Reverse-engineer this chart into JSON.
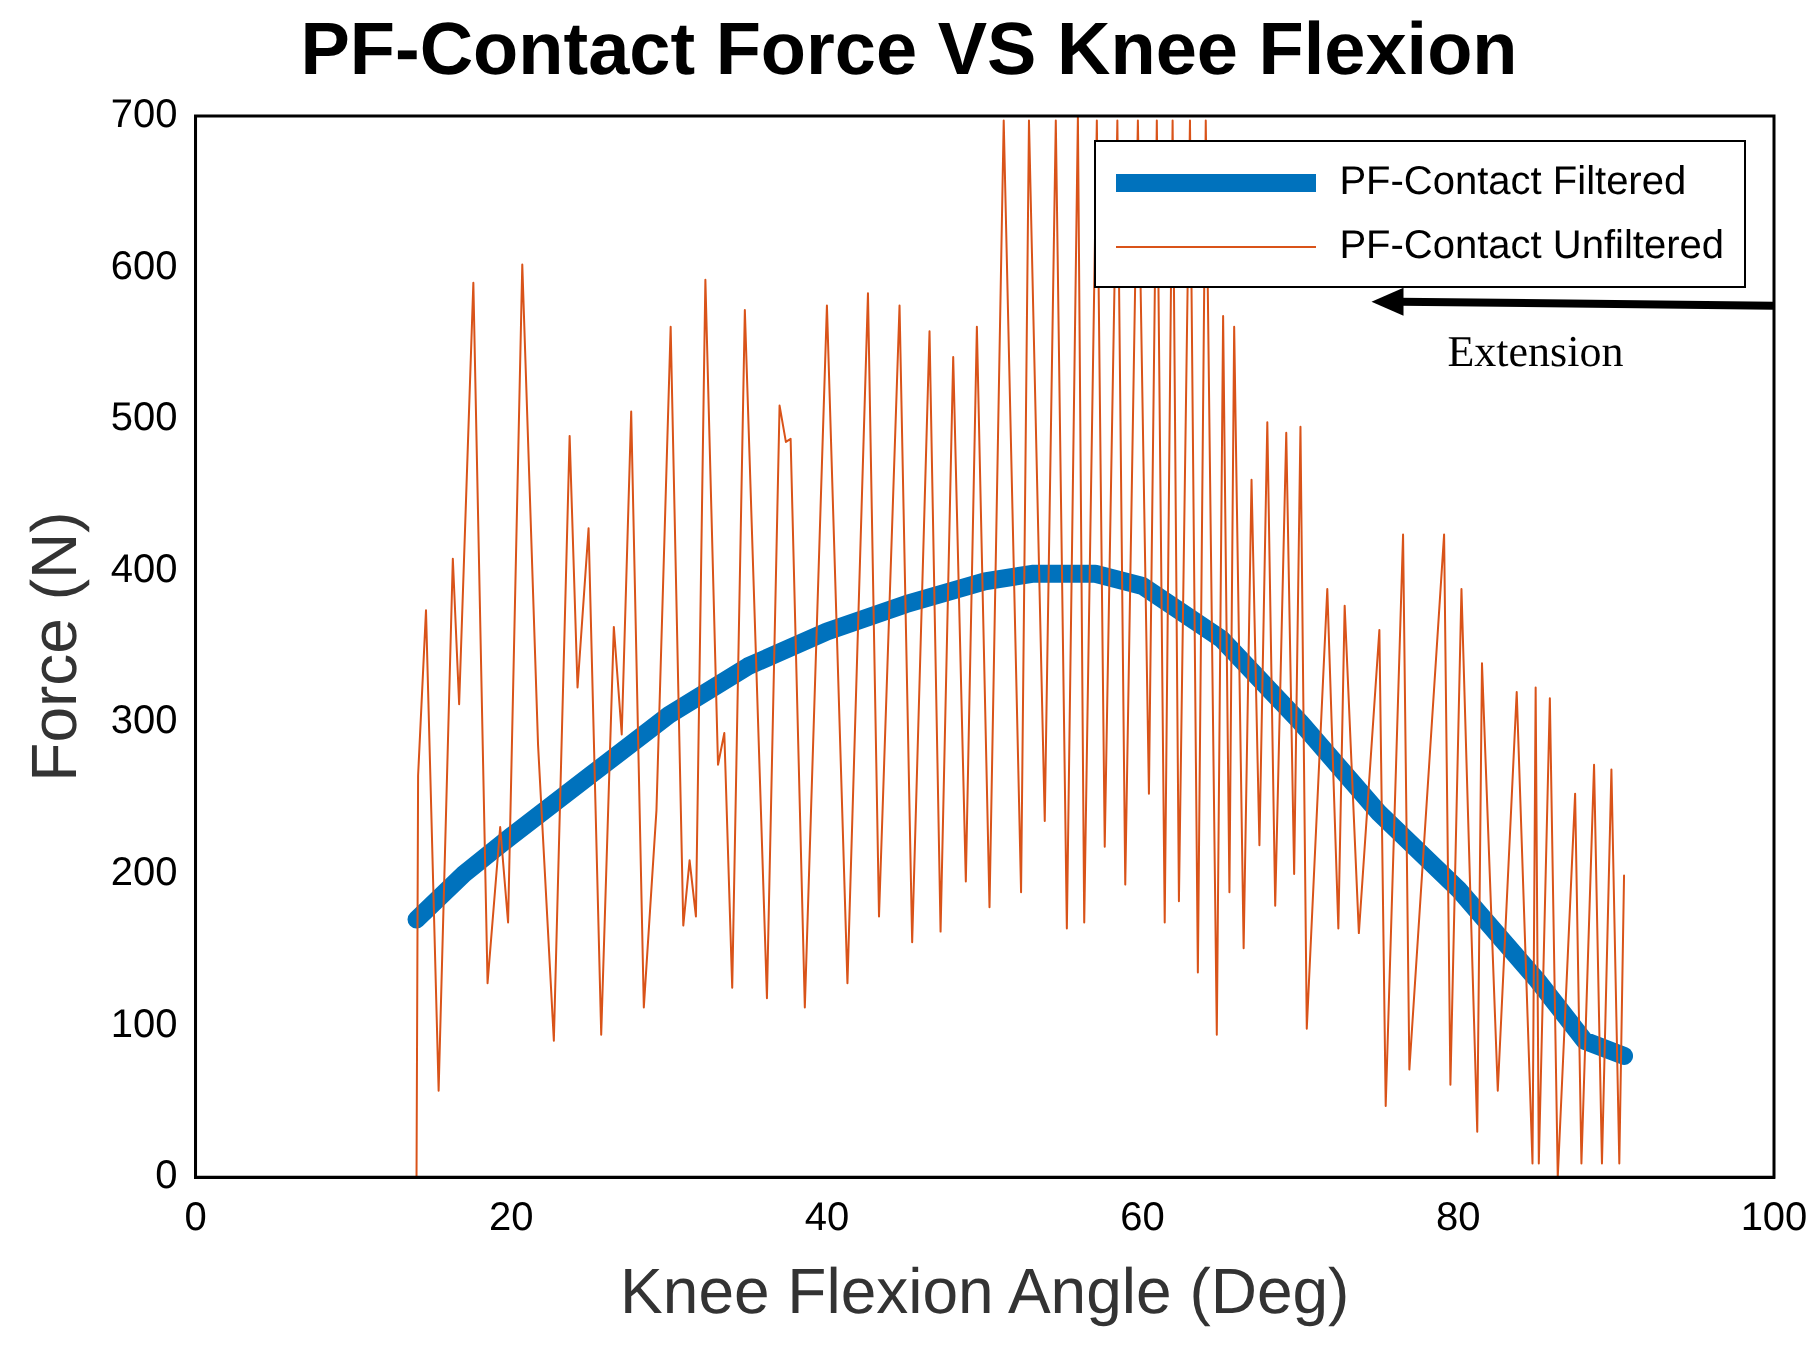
{
  "chart_data": {
    "type": "line",
    "title": "PF-Contact Force VS Knee Flexion",
    "xlabel": "Knee Flexion Angle (Deg)",
    "ylabel": "Force (N)",
    "xlim": [
      0,
      100
    ],
    "xticks": [
      0,
      20,
      40,
      60,
      80,
      100
    ],
    "ylim": [
      0,
      700
    ],
    "yticks": [
      0,
      100,
      200,
      300,
      400,
      500,
      600,
      700
    ],
    "grid": false,
    "legend": "top right",
    "marker": "none",
    "line_style": "solid",
    "annotations": [
      "Extension"
    ],
    "series": [
      {
        "name": "PF-Contact Filtered",
        "color": "#0072bd",
        "x": [
          14,
          17,
          20,
          25,
          30,
          35,
          40,
          45,
          50,
          53,
          57,
          60,
          65,
          70,
          75,
          80,
          85,
          88,
          90.5
        ],
        "values": [
          170,
          200,
          225,
          265,
          305,
          337,
          360,
          378,
          393,
          398,
          398,
          390,
          355,
          300,
          240,
          190,
          130,
          90,
          80
        ]
      },
      {
        "name": "PF-Contact Unfiltered",
        "color": "#d95319",
        "x": [
          14,
          14.1,
          14.6,
          15.4,
          16.3,
          16.7,
          17.6,
          18.5,
          19.3,
          19.8,
          20.7,
          21.7,
          22.7,
          23.7,
          24.2,
          24.9,
          25.7,
          26.5,
          27,
          27.6,
          28.4,
          29.2,
          30.1,
          30.9,
          31.3,
          31.7,
          32.3,
          33.1,
          33.5,
          34,
          34.8,
          36.2,
          37,
          37.4,
          37.7,
          38.6,
          40,
          41.3,
          42.6,
          43.3,
          44.6,
          45.4,
          46.5,
          47.2,
          48,
          48.8,
          49.5,
          50.3,
          51.2,
          52.3,
          52.8,
          53.8,
          54.5,
          55.2,
          55.9,
          56.3,
          57.1,
          57.6,
          58.4,
          58.9,
          59.7,
          60.4,
          60.9,
          61.4,
          61.9,
          62.3,
          63,
          63.5,
          64,
          64.7,
          65.1,
          65.5,
          65.8,
          66.4,
          66.9,
          67.4,
          67.9,
          68.4,
          69.1,
          69.6,
          70,
          70.4,
          71.7,
          72.4,
          72.8,
          73.7,
          75,
          75.4,
          76.5,
          76.9,
          79.1,
          79.5,
          80.2,
          81.2,
          81.5,
          82.5,
          83.7,
          84.7,
          84.9,
          85.1,
          85.8,
          86.3,
          87.4,
          87.8,
          88.6,
          89.1,
          89.7,
          90.2,
          90.5
        ],
        "values": [
          0,
          265,
          374,
          57,
          408,
          312,
          590,
          128,
          231,
          168,
          602,
          285,
          90,
          489,
          323,
          428,
          94,
          363,
          292,
          505,
          112,
          242,
          561,
          166,
          209,
          172,
          592,
          272,
          293,
          125,
          572,
          118,
          509,
          485,
          487,
          112,
          575,
          128,
          583,
          172,
          575,
          155,
          558,
          162,
          541,
          195,
          561,
          178,
          697,
          188,
          697,
          235,
          697,
          164,
          700,
          168,
          697,
          218,
          697,
          193,
          697,
          253,
          697,
          168,
          697,
          182,
          697,
          135,
          697,
          94,
          568,
          188,
          561,
          151,
          460,
          219,
          498,
          179,
          491,
          200,
          495,
          98,
          388,
          164,
          377,
          161,
          361,
          47,
          424,
          71,
          424,
          61,
          388,
          30,
          339,
          57,
          320,
          9,
          323,
          9,
          316,
          0,
          253,
          9,
          272,
          9,
          269,
          9,
          199
        ]
      }
    ]
  }
}
